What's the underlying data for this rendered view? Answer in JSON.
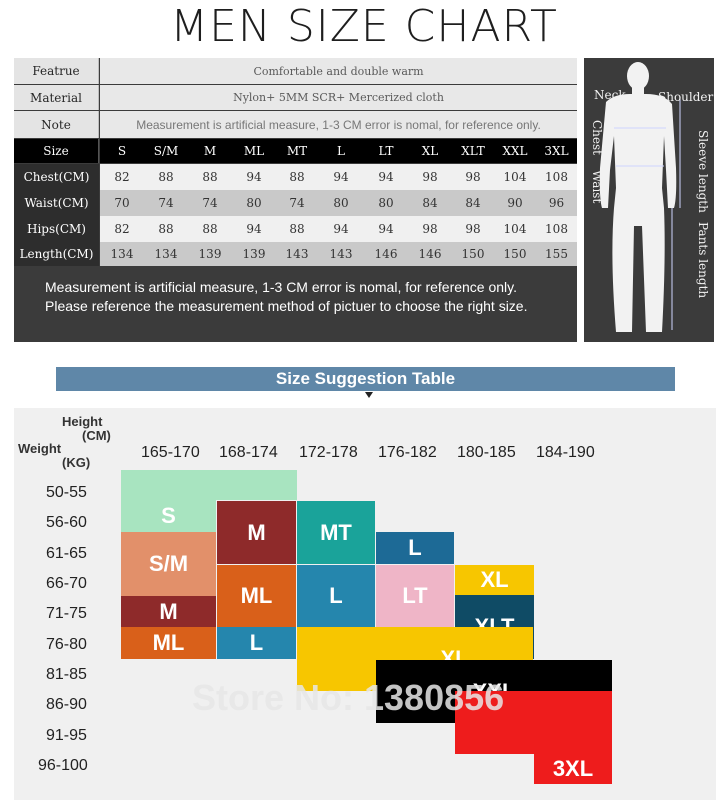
{
  "title": "MEN SIZE CHART",
  "table": {
    "feature_label": "Featrue",
    "feature_value": "Comfortable and double warm",
    "material_label": "Material",
    "material_value": "Nylon+ 5MM SCR+ Mercerized cloth",
    "note_label": "Note",
    "note_value": "Measurement is artificial measure, 1-3 CM error is nomal, for reference only.",
    "size_label": "Size",
    "sizes": [
      "S",
      "S/M",
      "M",
      "ML",
      "MT",
      "L",
      "LT",
      "XL",
      "XLT",
      "XXL",
      "3XL"
    ],
    "rows": [
      {
        "label": "Chest(CM)",
        "values": [
          "82",
          "88",
          "88",
          "94",
          "88",
          "94",
          "94",
          "98",
          "98",
          "104",
          "108"
        ]
      },
      {
        "label": "Waist(CM)",
        "values": [
          "70",
          "74",
          "74",
          "80",
          "74",
          "80",
          "80",
          "84",
          "84",
          "90",
          "96"
        ]
      },
      {
        "label": "Hips(CM)",
        "values": [
          "82",
          "88",
          "88",
          "94",
          "88",
          "94",
          "94",
          "98",
          "98",
          "104",
          "108"
        ]
      },
      {
        "label": "Length(CM)",
        "values": [
          "134",
          "134",
          "139",
          "139",
          "143",
          "143",
          "146",
          "146",
          "150",
          "150",
          "155"
        ]
      }
    ],
    "note_line1": "Measurement is artificial measure, 1-3 CM error is nomal, for reference only.",
    "note_line2": "Please reference the measurement method of pictuer to choose the right size."
  },
  "figure": {
    "neck": "Neck",
    "shoulder": "Shoulder",
    "chest": "Chest",
    "waist": "Waist",
    "sleeve_length": "Sleeve length",
    "pants_length": "Pants length",
    "colors": {
      "panel": "#3b3b3b",
      "silhouette": "#f2f2f2"
    }
  },
  "suggestion": {
    "banner": "Size Suggestion Table",
    "height_label": "Height",
    "height_unit": "(CM)",
    "weight_label": "Weight",
    "weight_unit": "(KG)",
    "heights": [
      "165-170",
      "168-174",
      "172-178",
      "176-182",
      "180-185",
      "184-190"
    ],
    "weights": [
      "50-55",
      "56-60",
      "61-65",
      "66-70",
      "71-75",
      "76-80",
      "81-85",
      "86-90",
      "91-95",
      "96-100"
    ],
    "blocks": [
      {
        "label": "S",
        "color": "#a8e4c0"
      },
      {
        "label": "M",
        "color": "#8e2a2a"
      },
      {
        "label": "MT",
        "color": "#1aa39a"
      },
      {
        "label": "S/M",
        "color": "#e2906a"
      },
      {
        "label": "L",
        "color": "#1d6a96"
      },
      {
        "label": "ML",
        "color": "#d9601a"
      },
      {
        "label": "L",
        "color": "#2586ad"
      },
      {
        "label": "LT",
        "color": "#efb5c7"
      },
      {
        "label": "XL",
        "color": "#f7c600"
      },
      {
        "label": "M",
        "color": "#8e2a2a"
      },
      {
        "label": "XLT",
        "color": "#0f4b65"
      },
      {
        "label": "ML",
        "color": "#d9601a"
      },
      {
        "label": "L",
        "color": "#2586ad"
      },
      {
        "label": "XL",
        "color": "#f7c600"
      },
      {
        "label": "XXL",
        "color": "#000000"
      },
      {
        "label": "3XL",
        "color": "#ee1c1c"
      }
    ],
    "watermark": "Store No: 1380856"
  }
}
